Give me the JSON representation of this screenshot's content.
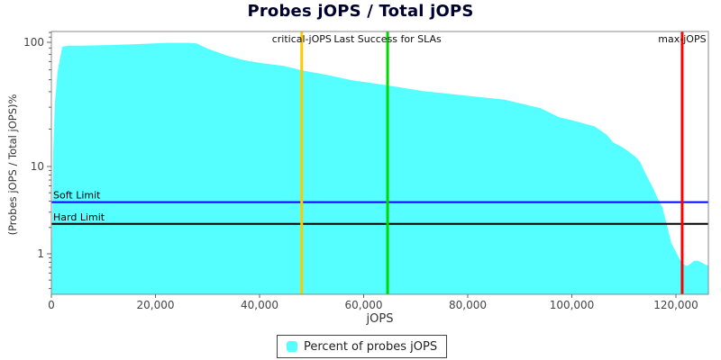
{
  "title": "Probes jOPS / Total jOPS",
  "chart_data": {
    "type": "area",
    "title": "Probes jOPS / Total jOPS",
    "xlabel": "jOPS",
    "ylabel": "(Probes jOPS / Total jOPS)%",
    "x_scale": "linear",
    "y_scale": "log",
    "xlim": [
      0,
      126200
    ],
    "ylim": [
      0.34,
      122
    ],
    "grid": false,
    "x_ticks": [
      {
        "v": 0,
        "label": "0"
      },
      {
        "v": 20000,
        "label": "20,000"
      },
      {
        "v": 40000,
        "label": "40,000"
      },
      {
        "v": 60000,
        "label": "60,000"
      },
      {
        "v": 80000,
        "label": "80,000"
      },
      {
        "v": 100000,
        "label": "100,000"
      },
      {
        "v": 120000,
        "label": "120,000"
      }
    ],
    "y_ticks": [
      {
        "v": 1,
        "label": "1"
      },
      {
        "v": 10,
        "label": "10"
      },
      {
        "v": 100,
        "label": "100"
      }
    ],
    "series": [
      {
        "name": "Percent of probes jOPS",
        "color": "#55ffff",
        "points": [
          [
            0,
            0.4
          ],
          [
            350,
            13
          ],
          [
            690,
            33
          ],
          [
            1200,
            58
          ],
          [
            2100,
            92
          ],
          [
            3100,
            94
          ],
          [
            5700,
            94
          ],
          [
            10900,
            95
          ],
          [
            16100,
            96.5
          ],
          [
            22200,
            99
          ],
          [
            26500,
            99
          ],
          [
            27900,
            98
          ],
          [
            30000,
            89
          ],
          [
            33800,
            78
          ],
          [
            36900,
            72
          ],
          [
            40300,
            68
          ],
          [
            44700,
            64.5
          ],
          [
            48100,
            59.5
          ],
          [
            52500,
            55
          ],
          [
            57700,
            49.5
          ],
          [
            64600,
            45
          ],
          [
            71500,
            40.5
          ],
          [
            80200,
            37
          ],
          [
            87100,
            34.5
          ],
          [
            94000,
            29.5
          ],
          [
            97500,
            25
          ],
          [
            101000,
            23
          ],
          [
            104400,
            21
          ],
          [
            106700,
            18
          ],
          [
            107900,
            15.7
          ],
          [
            109600,
            14.4
          ],
          [
            110800,
            13.3
          ],
          [
            112200,
            12
          ],
          [
            113100,
            10.9
          ],
          [
            113900,
            8.9
          ],
          [
            114800,
            7.0
          ],
          [
            115700,
            5.5
          ],
          [
            116500,
            4.3
          ],
          [
            117400,
            3.4
          ],
          [
            118300,
            2.1
          ],
          [
            119100,
            1.33
          ],
          [
            120000,
            1.05
          ],
          [
            120900,
            0.83
          ],
          [
            121400,
            0.77
          ],
          [
            122100,
            0.72
          ],
          [
            122800,
            0.77
          ],
          [
            123500,
            0.83
          ],
          [
            124300,
            0.83
          ],
          [
            125000,
            0.79
          ],
          [
            125700,
            0.75
          ],
          [
            126200,
            0.73
          ]
        ]
      }
    ],
    "vlines": [
      {
        "label": "critical-jOPS",
        "x": 48100,
        "color": "#ffc800",
        "width": 3
      },
      {
        "label": "Last Success for SLAs",
        "x": 64600,
        "color": "#00d900",
        "width": 3
      },
      {
        "label": "max-jOPS",
        "x": 121200,
        "color": "#ff0000",
        "width": 3
      }
    ],
    "hlines": [
      {
        "label": "Soft Limit",
        "y": 3.9,
        "color": "#0000ff",
        "width": 2
      },
      {
        "label": "Hard Limit",
        "y": 2.2,
        "color": "#000000",
        "width": 2
      }
    ],
    "legend": {
      "position": "bottom-center",
      "items": [
        {
          "label": "Percent of probes jOPS",
          "color": "#55ffff"
        }
      ]
    }
  }
}
